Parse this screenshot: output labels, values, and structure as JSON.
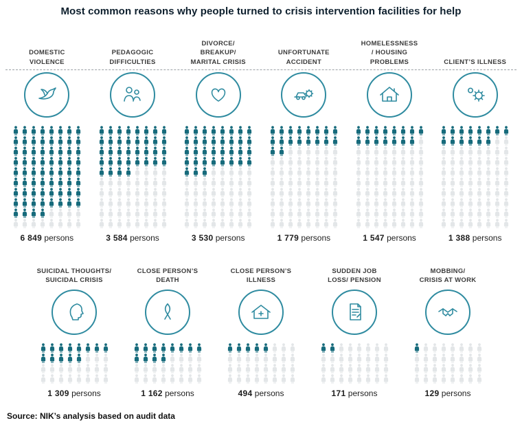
{
  "chart_data": {
    "type": "pictogram",
    "title": "Most common reasons why people turned to crisis intervention facilities for help",
    "unit_label": "persons",
    "unit_per_icon": 100,
    "icons_per_row": 8,
    "legend_position": "none",
    "grid": false,
    "colors": {
      "filled_icon": "#176b7c",
      "empty_icon": "#e3e6e8",
      "circle_outline": "#2f8ba0",
      "dashed_line": "#9aa0a4"
    },
    "rows": [
      {
        "capacity": 80,
        "items": [
          {
            "label_lines": [
              "DOMESTIC",
              "VIOLENCE"
            ],
            "value": 6849,
            "value_display": "6 849",
            "icon": "dove-icon"
          },
          {
            "label_lines": [
              "PEDAGOGIC",
              "DIFFICULTIES"
            ],
            "value": 3584,
            "value_display": "3 584",
            "icon": "family-icon"
          },
          {
            "label_lines": [
              "DIVORCE/",
              "BREAKUP/",
              "MARITAL CRISIS"
            ],
            "value": 3530,
            "value_display": "3 530",
            "icon": "heart-icon"
          },
          {
            "label_lines": [
              "UNFORTUNATE",
              "ACCIDENT"
            ],
            "value": 1779,
            "value_display": "1 779",
            "icon": "car-gear-icon"
          },
          {
            "label_lines": [
              "HOMELESSNESS",
              "/ HOUSING",
              "PROBLEMS"
            ],
            "value": 1547,
            "value_display": "1 547",
            "icon": "house-icon"
          },
          {
            "label_lines": [
              "CLIENT’S ILLNESS"
            ],
            "value": 1388,
            "value_display": "1 388",
            "icon": "virus-icon"
          }
        ]
      },
      {
        "capacity": 32,
        "items": [
          {
            "label_lines": [
              "SUICIDAL THOUGHTS/",
              "SUICIDAL CRISIS"
            ],
            "value": 1309,
            "value_display": "1 309",
            "icon": "head-profile-icon"
          },
          {
            "label_lines": [
              "CLOSE PERSON’S",
              "DEATH"
            ],
            "value": 1162,
            "value_display": "1 162",
            "icon": "ribbon-icon"
          },
          {
            "label_lines": [
              "CLOSE PERSON’S",
              "ILLNESS"
            ],
            "value": 494,
            "value_display": "494",
            "icon": "hospital-house-icon"
          },
          {
            "label_lines": [
              "SUDDEN JOB",
              "LOSS/ PENSION"
            ],
            "value": 171,
            "value_display": "171",
            "icon": "document-icon"
          },
          {
            "label_lines": [
              "MOBBING/",
              "CRISIS AT WORK"
            ],
            "value": 129,
            "value_display": "129",
            "icon": "handshake-icon"
          }
        ]
      }
    ],
    "source": "Source: NIK’s analysis based on audit data"
  }
}
